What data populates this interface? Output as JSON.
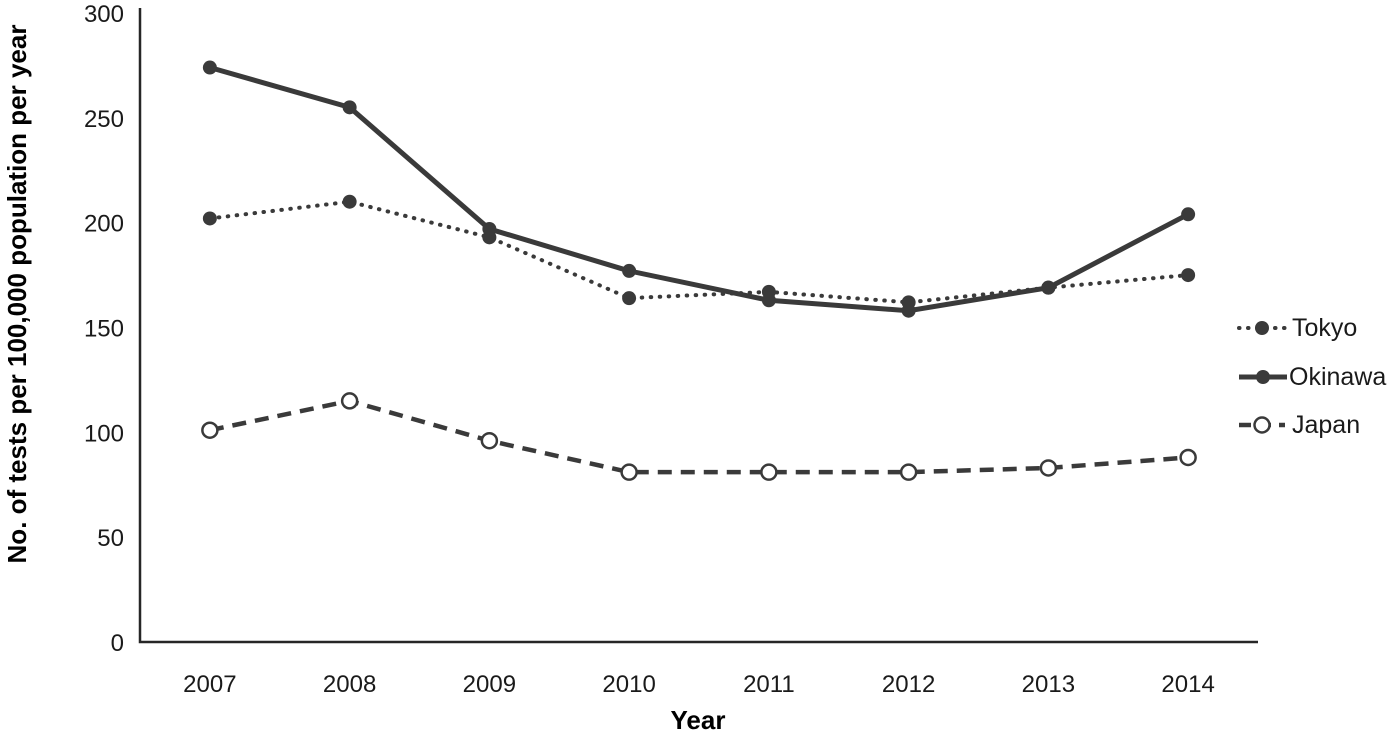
{
  "figure": {
    "background_color": "#ffffff",
    "series_color": "#3a3a3a",
    "axis_color": "#262626",
    "text_color": "#1a1a1a"
  },
  "chart_data": {
    "type": "line",
    "title": "",
    "xlabel": "Year",
    "ylabel": "No. of tests per 100,000 population per year",
    "x": [
      2007,
      2008,
      2009,
      2010,
      2011,
      2012,
      2013,
      2014
    ],
    "ylim": [
      0,
      300
    ],
    "yticks": [
      0,
      50,
      100,
      150,
      200,
      250,
      300
    ],
    "grid": false,
    "legend_position": "right",
    "legend_entries": [
      "Tokyo",
      "Okinawa",
      "Japan"
    ],
    "series": [
      {
        "name": "Tokyo",
        "line_style": "dotted",
        "marker": "filled-circle",
        "values": [
          202,
          210,
          193,
          164,
          167,
          162,
          169,
          175
        ]
      },
      {
        "name": "Okinawa",
        "line_style": "solid",
        "marker": "filled-circle",
        "values": [
          274,
          255,
          197,
          177,
          163,
          158,
          169,
          204
        ]
      },
      {
        "name": "Japan",
        "line_style": "dashed",
        "marker": "open-circle",
        "values": [
          101,
          115,
          96,
          81,
          81,
          81,
          83,
          88
        ]
      }
    ]
  }
}
